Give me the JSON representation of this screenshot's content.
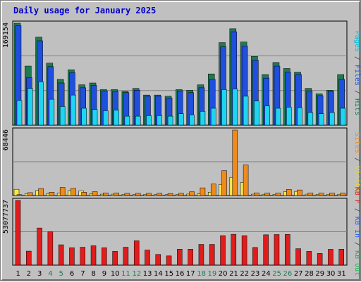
{
  "chart_data": {
    "type": "bar",
    "title": "Daily usage for January 2025",
    "categories": [
      "1",
      "2",
      "3",
      "4",
      "5",
      "6",
      "7",
      "8",
      "9",
      "10",
      "11",
      "12",
      "13",
      "14",
      "15",
      "16",
      "17",
      "18",
      "19",
      "20",
      "21",
      "22",
      "23",
      "24",
      "25",
      "26",
      "27",
      "28",
      "29",
      "30",
      "31"
    ],
    "weekend_categories": [
      "4",
      "5",
      "11",
      "12",
      "18",
      "19",
      "25",
      "26"
    ],
    "panels": [
      {
        "name": "hits-files-pages",
        "ymax_label": "169154",
        "ymax": 169154,
        "legend": [
          "Pages",
          "Files",
          "Hits"
        ],
        "series": [
          {
            "name": "Hits",
            "color": "#1f7a52",
            "values": [
              169154,
              98000,
              146000,
              103000,
              76000,
              92000,
              67000,
              70000,
              59000,
              59000,
              56000,
              61000,
              50000,
              50000,
              48000,
              59000,
              58000,
              67000,
              85000,
              137000,
              160000,
              138000,
              114000,
              84000,
              104000,
              94000,
              88000,
              61000,
              52000,
              58000,
              84000
            ]
          },
          {
            "name": "Files",
            "color": "#1f4fdd",
            "values": [
              165000,
              79000,
              140000,
              97000,
              70000,
              87000,
              62000,
              66000,
              57000,
              56000,
              54000,
              58000,
              48000,
              48000,
              45000,
              57000,
              54000,
              62000,
              76000,
              130000,
              155000,
              131000,
              108000,
              78000,
              98000,
              88000,
              84000,
              57000,
              49000,
              56000,
              76000
            ]
          },
          {
            "name": "Pages",
            "color": "#1fd4f0",
            "values": [
              41000,
              61000,
              72000,
              43000,
              31000,
              50000,
              28000,
              26000,
              24000,
              25000,
              15000,
              15000,
              16000,
              16000,
              15000,
              19000,
              17000,
              23000,
              28000,
              59000,
              60000,
              48000,
              40000,
              32000,
              28000,
              30000,
              29000,
              21000,
              19000,
              21000,
              28000
            ]
          }
        ]
      },
      {
        "name": "visits-sites",
        "ymax_label": "68446",
        "ymax": 68446,
        "legend": [
          "Visits",
          "Sites"
        ],
        "series": [
          {
            "name": "Visits",
            "color": "#f7e84a",
            "values": [
              6500,
              2100,
              5200,
              2100,
              2400,
              5200,
              4900,
              1600,
              1400,
              1400,
              1100,
              1100,
              1100,
              1100,
              900,
              1100,
              1500,
              1900,
              3500,
              11500,
              19000,
              13700,
              1400,
              1200,
              1200,
              4100,
              4300,
              1400,
              1200,
              1200,
              1300
            ]
          },
          {
            "name": "Sites",
            "color": "#f08a1a",
            "values": [
              900,
              3000,
              7300,
              3500,
              8400,
              7500,
              3400,
              4000,
              2700,
              2700,
              2300,
              2300,
              2300,
              2300,
              2100,
              2300,
              3900,
              8000,
              12000,
              26000,
              68446,
              32000,
              2800,
              2600,
              2600,
              6300,
              5800,
              2600,
              2600,
              2600,
              2600
            ]
          }
        ]
      },
      {
        "name": "kbytes",
        "ymax_label": "53077737",
        "ymax": 53077737,
        "legend": [
          "KB F",
          "KB In",
          "KB Out"
        ],
        "series": [
          {
            "name": "KB F",
            "color": "#e01c1c",
            "values": [
              53077737,
              11500000,
              30500000,
              27300000,
              16700000,
              14300000,
              14700000,
              15900000,
              14300000,
              11300000,
              14700000,
              20000000,
              12400000,
              8800000,
              7600000,
              13100000,
              13100000,
              17000000,
              17000000,
              24200000,
              25300000,
              24200000,
              14500000,
              24900000,
              25100000,
              25200000,
              13500000,
              11300000,
              9600000,
              13000000,
              13100000
            ]
          }
        ]
      }
    ]
  },
  "colors": {
    "background": "#c0c0c0",
    "plot_background": "#c0c0c0",
    "title": "#0000cc",
    "weekday_label": "#000000",
    "weekend_label": "#1f7a52",
    "gridline": "#808080",
    "kb_in": "#1f5fff",
    "kb_out": "#1fb050"
  },
  "legend_text": {
    "top": [
      {
        "text": "Pages",
        "color": "#00c0d8"
      },
      {
        "text": " / ",
        "color": "#404040"
      },
      {
        "text": "Files",
        "color": "#1f4fdd"
      },
      {
        "text": " / ",
        "color": "#404040"
      },
      {
        "text": "Hits",
        "color": "#1f7a52"
      }
    ],
    "middle": [
      {
        "text": "Sites",
        "color": "#f08a1a"
      },
      {
        "text": " / ",
        "color": "#404040"
      },
      {
        "text": "Visits",
        "color": "#e8d800"
      }
    ],
    "bottom": [
      {
        "text": "KB F",
        "color": "#e01c1c"
      },
      {
        "text": " / ",
        "color": "#404040"
      },
      {
        "text": "KB In",
        "color": "#1f5fff"
      },
      {
        "text": " / ",
        "color": "#404040"
      },
      {
        "text": "KB Out",
        "color": "#1fb050"
      }
    ]
  }
}
